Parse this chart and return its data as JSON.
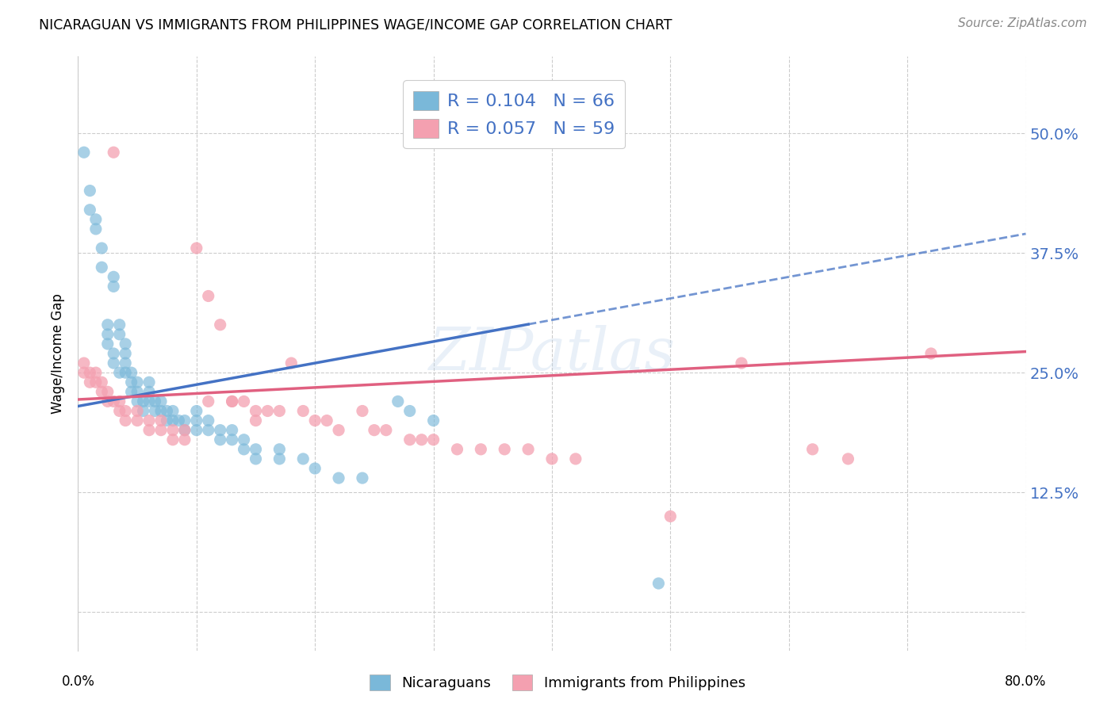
{
  "title": "NICARAGUAN VS IMMIGRANTS FROM PHILIPPINES WAGE/INCOME GAP CORRELATION CHART",
  "source": "Source: ZipAtlas.com",
  "ylabel": "Wage/Income Gap",
  "ytick_labels": [
    "",
    "12.5%",
    "25.0%",
    "37.5%",
    "50.0%"
  ],
  "ytick_values": [
    0.0,
    0.125,
    0.25,
    0.375,
    0.5
  ],
  "xlim": [
    0.0,
    0.8
  ],
  "ylim": [
    -0.04,
    0.58
  ],
  "R_blue": 0.104,
  "N_blue": 66,
  "R_pink": 0.057,
  "N_pink": 59,
  "color_blue": "#7ab8d9",
  "color_pink": "#f4a0b0",
  "trendline_blue": "#4472c4",
  "trendline_pink": "#e06080",
  "watermark": "ZIPatlas",
  "legend_label_blue": "Nicaraguans",
  "legend_label_pink": "Immigrants from Philippines",
  "blue_x": [
    0.005,
    0.01,
    0.01,
    0.015,
    0.015,
    0.02,
    0.02,
    0.025,
    0.025,
    0.025,
    0.03,
    0.03,
    0.03,
    0.03,
    0.035,
    0.035,
    0.035,
    0.04,
    0.04,
    0.04,
    0.04,
    0.045,
    0.045,
    0.045,
    0.05,
    0.05,
    0.05,
    0.055,
    0.055,
    0.06,
    0.06,
    0.06,
    0.065,
    0.065,
    0.07,
    0.07,
    0.075,
    0.075,
    0.08,
    0.08,
    0.085,
    0.09,
    0.09,
    0.1,
    0.1,
    0.1,
    0.11,
    0.11,
    0.12,
    0.12,
    0.13,
    0.13,
    0.14,
    0.14,
    0.15,
    0.15,
    0.17,
    0.17,
    0.19,
    0.2,
    0.22,
    0.24,
    0.27,
    0.28,
    0.3,
    0.49
  ],
  "blue_y": [
    0.48,
    0.44,
    0.42,
    0.41,
    0.4,
    0.38,
    0.36,
    0.3,
    0.29,
    0.28,
    0.35,
    0.34,
    0.27,
    0.26,
    0.3,
    0.29,
    0.25,
    0.28,
    0.27,
    0.26,
    0.25,
    0.25,
    0.24,
    0.23,
    0.24,
    0.23,
    0.22,
    0.22,
    0.21,
    0.24,
    0.23,
    0.22,
    0.22,
    0.21,
    0.22,
    0.21,
    0.21,
    0.2,
    0.21,
    0.2,
    0.2,
    0.2,
    0.19,
    0.19,
    0.21,
    0.2,
    0.2,
    0.19,
    0.19,
    0.18,
    0.19,
    0.18,
    0.18,
    0.17,
    0.17,
    0.16,
    0.17,
    0.16,
    0.16,
    0.15,
    0.14,
    0.14,
    0.22,
    0.21,
    0.2,
    0.03
  ],
  "pink_x": [
    0.005,
    0.005,
    0.01,
    0.01,
    0.015,
    0.015,
    0.02,
    0.02,
    0.025,
    0.025,
    0.03,
    0.03,
    0.035,
    0.035,
    0.04,
    0.04,
    0.05,
    0.05,
    0.06,
    0.06,
    0.07,
    0.07,
    0.08,
    0.08,
    0.09,
    0.09,
    0.1,
    0.11,
    0.11,
    0.12,
    0.13,
    0.13,
    0.14,
    0.15,
    0.15,
    0.16,
    0.17,
    0.18,
    0.19,
    0.2,
    0.21,
    0.22,
    0.24,
    0.25,
    0.26,
    0.28,
    0.29,
    0.3,
    0.32,
    0.34,
    0.36,
    0.38,
    0.4,
    0.42,
    0.5,
    0.56,
    0.62,
    0.65,
    0.72
  ],
  "pink_y": [
    0.26,
    0.25,
    0.25,
    0.24,
    0.25,
    0.24,
    0.24,
    0.23,
    0.23,
    0.22,
    0.48,
    0.22,
    0.22,
    0.21,
    0.21,
    0.2,
    0.21,
    0.2,
    0.2,
    0.19,
    0.19,
    0.2,
    0.19,
    0.18,
    0.19,
    0.18,
    0.38,
    0.33,
    0.22,
    0.3,
    0.22,
    0.22,
    0.22,
    0.21,
    0.2,
    0.21,
    0.21,
    0.26,
    0.21,
    0.2,
    0.2,
    0.19,
    0.21,
    0.19,
    0.19,
    0.18,
    0.18,
    0.18,
    0.17,
    0.17,
    0.17,
    0.17,
    0.16,
    0.16,
    0.1,
    0.26,
    0.17,
    0.16,
    0.27
  ],
  "trendline_blue_x0": 0.0,
  "trendline_blue_y0": 0.215,
  "trendline_blue_x1": 0.8,
  "trendline_blue_y1": 0.395,
  "trendline_blue_solid_end": 0.38,
  "trendline_pink_x0": 0.0,
  "trendline_pink_y0": 0.222,
  "trendline_pink_x1": 0.8,
  "trendline_pink_y1": 0.272
}
